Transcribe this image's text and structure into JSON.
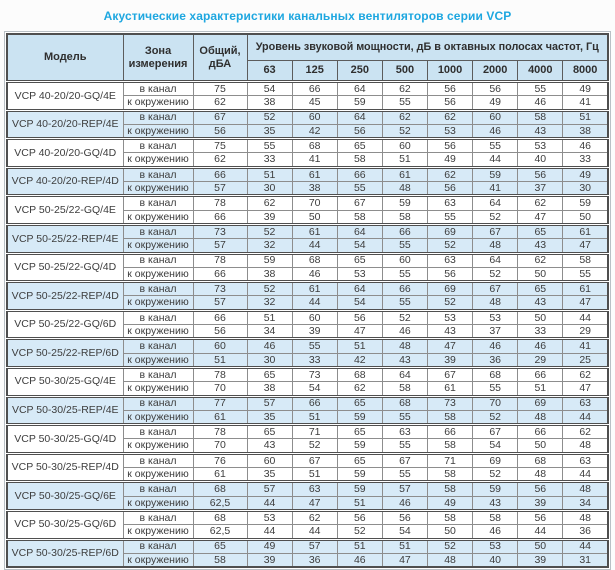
{
  "title": "Акустические характеристики канальных вентиляторов серии VCP",
  "colors": {
    "accent": "#1ea7e0",
    "header_bg": "#cbe3f2",
    "band_bg": "#d7eaf7",
    "border_dark": "#4f4f4f",
    "border_light": "#8d8d8d",
    "text": "#3d3d3d"
  },
  "table": {
    "headers": {
      "model": "Модель",
      "zone": "Зона измерения",
      "total": "Общий, дБА",
      "spl": "Уровень звуковой мощности, дБ в октавных полосах частот, Гц",
      "frequencies": [
        "63",
        "125",
        "250",
        "500",
        "1000",
        "2000",
        "4000",
        "8000"
      ]
    },
    "models": [
      {
        "name": "VCP 40-20/20-GQ/4E",
        "shaded": false,
        "rows": [
          {
            "zone": "в канал",
            "total": "75",
            "levels": [
              54,
              66,
              64,
              62,
              56,
              56,
              55,
              49
            ]
          },
          {
            "zone": "к окружению",
            "total": "62",
            "levels": [
              38,
              45,
              59,
              55,
              56,
              49,
              46,
              41
            ]
          }
        ]
      },
      {
        "name": "VCP 40-20/20-REP/4E",
        "shaded": true,
        "rows": [
          {
            "zone": "в канал",
            "total": "67",
            "levels": [
              52,
              60,
              64,
              62,
              62,
              60,
              58,
              51
            ]
          },
          {
            "zone": "к окружению",
            "total": "56",
            "levels": [
              35,
              42,
              56,
              52,
              53,
              46,
              43,
              38
            ]
          }
        ]
      },
      {
        "name": "VCP 40-20/20-GQ/4D",
        "shaded": false,
        "rows": [
          {
            "zone": "в канал",
            "total": "75",
            "levels": [
              55,
              68,
              65,
              60,
              56,
              55,
              53,
              46
            ]
          },
          {
            "zone": "к окружению",
            "total": "62",
            "levels": [
              33,
              41,
              58,
              51,
              49,
              44,
              40,
              33
            ]
          }
        ]
      },
      {
        "name": "VCP 40-20/20-REP/4D",
        "shaded": true,
        "rows": [
          {
            "zone": "в канал",
            "total": "66",
            "levels": [
              51,
              61,
              66,
              61,
              62,
              59,
              56,
              49
            ]
          },
          {
            "zone": "к окружению",
            "total": "57",
            "levels": [
              30,
              38,
              55,
              48,
              56,
              41,
              37,
              30
            ]
          }
        ]
      },
      {
        "name": "VCP 50-25/22-GQ/4E",
        "shaded": false,
        "rows": [
          {
            "zone": "в канал",
            "total": "78",
            "levels": [
              62,
              70,
              67,
              59,
              63,
              64,
              62,
              59
            ]
          },
          {
            "zone": "к окружению",
            "total": "66",
            "levels": [
              39,
              50,
              58,
              58,
              55,
              52,
              47,
              50
            ]
          }
        ]
      },
      {
        "name": "VCP 50-25/22-REP/4E",
        "shaded": true,
        "rows": [
          {
            "zone": "в канал",
            "total": "73",
            "levels": [
              52,
              61,
              64,
              66,
              69,
              67,
              65,
              61
            ]
          },
          {
            "zone": "к окружению",
            "total": "57",
            "levels": [
              32,
              44,
              54,
              55,
              52,
              48,
              43,
              47
            ]
          }
        ]
      },
      {
        "name": "VCP 50-25/22-GQ/4D",
        "shaded": false,
        "rows": [
          {
            "zone": "в канал",
            "total": "78",
            "levels": [
              59,
              68,
              65,
              60,
              63,
              64,
              62,
              58
            ]
          },
          {
            "zone": "к окружению",
            "total": "66",
            "levels": [
              38,
              46,
              53,
              55,
              56,
              52,
              50,
              55
            ]
          }
        ]
      },
      {
        "name": "VCP 50-25/22-REP/4D",
        "shaded": true,
        "rows": [
          {
            "zone": "в канал",
            "total": "73",
            "levels": [
              52,
              61,
              64,
              66,
              69,
              67,
              65,
              61
            ]
          },
          {
            "zone": "к окружению",
            "total": "57",
            "levels": [
              32,
              44,
              54,
              55,
              52,
              48,
              43,
              47
            ]
          }
        ]
      },
      {
        "name": "VCP 50-25/22-GQ/6D",
        "shaded": false,
        "rows": [
          {
            "zone": "в канал",
            "total": "66",
            "levels": [
              51,
              60,
              56,
              52,
              53,
              53,
              50,
              44
            ]
          },
          {
            "zone": "к окружению",
            "total": "56",
            "levels": [
              34,
              39,
              47,
              46,
              43,
              37,
              33,
              29
            ]
          }
        ]
      },
      {
        "name": "VCP 50-25/22-REP/6D",
        "shaded": true,
        "rows": [
          {
            "zone": "в канал",
            "total": "60",
            "levels": [
              46,
              55,
              51,
              48,
              47,
              46,
              46,
              41
            ]
          },
          {
            "zone": "к окружению",
            "total": "51",
            "levels": [
              30,
              33,
              42,
              43,
              39,
              36,
              29,
              25
            ]
          }
        ]
      },
      {
        "name": "VCP 50-30/25-GQ/4E",
        "shaded": false,
        "rows": [
          {
            "zone": "в канал",
            "total": "78",
            "levels": [
              65,
              73,
              68,
              64,
              67,
              68,
              66,
              62
            ]
          },
          {
            "zone": "к окружению",
            "total": "70",
            "levels": [
              38,
              54,
              62,
              58,
              61,
              55,
              51,
              47
            ]
          }
        ]
      },
      {
        "name": "VCP 50-30/25-REP/4E",
        "shaded": true,
        "rows": [
          {
            "zone": "в канал",
            "total": "77",
            "levels": [
              57,
              66,
              65,
              68,
              73,
              70,
              69,
              63
            ]
          },
          {
            "zone": "к окружению",
            "total": "61",
            "levels": [
              35,
              51,
              59,
              55,
              58,
              52,
              48,
              44
            ]
          }
        ]
      },
      {
        "name": "VCP 50-30/25-GQ/4D",
        "shaded": false,
        "rows": [
          {
            "zone": "в канал",
            "total": "78",
            "levels": [
              65,
              71,
              65,
              63,
              66,
              67,
              66,
              62
            ]
          },
          {
            "zone": "к окружению",
            "total": "70",
            "levels": [
              43,
              52,
              59,
              55,
              58,
              54,
              50,
              48
            ]
          }
        ]
      },
      {
        "name": "VCP 50-30/25-REP/4D",
        "shaded": false,
        "rows": [
          {
            "zone": "в канал",
            "total": "76",
            "levels": [
              60,
              67,
              65,
              67,
              71,
              69,
              68,
              63
            ]
          },
          {
            "zone": "к окружению",
            "total": "61",
            "levels": [
              35,
              51,
              59,
              55,
              58,
              52,
              48,
              44
            ]
          }
        ]
      },
      {
        "name": "VCP 50-30/25-GQ/6E",
        "shaded": true,
        "rows": [
          {
            "zone": "в канал",
            "total": "68",
            "levels": [
              57,
              63,
              59,
              57,
              58,
              59,
              56,
              48
            ]
          },
          {
            "zone": "к окружению",
            "total": "62,5",
            "levels": [
              44,
              47,
              51,
              46,
              49,
              43,
              39,
              34
            ]
          }
        ]
      },
      {
        "name": "VCP 50-30/25-GQ/6D",
        "shaded": false,
        "rows": [
          {
            "zone": "в канал",
            "total": "68",
            "levels": [
              53,
              62,
              56,
              56,
              58,
              58,
              56,
              48
            ]
          },
          {
            "zone": "к окружению",
            "total": "62,5",
            "levels": [
              44,
              44,
              52,
              54,
              50,
              46,
              44,
              36
            ]
          }
        ]
      },
      {
        "name": "VCP 50-30/25-REP/6D",
        "shaded": true,
        "rows": [
          {
            "zone": "в канал",
            "total": "65",
            "levels": [
              49,
              57,
              51,
              51,
              52,
              53,
              50,
              44
            ]
          },
          {
            "zone": "к окружению",
            "total": "58",
            "levels": [
              39,
              36,
              46,
              47,
              48,
              40,
              39,
              31
            ]
          }
        ]
      }
    ]
  }
}
